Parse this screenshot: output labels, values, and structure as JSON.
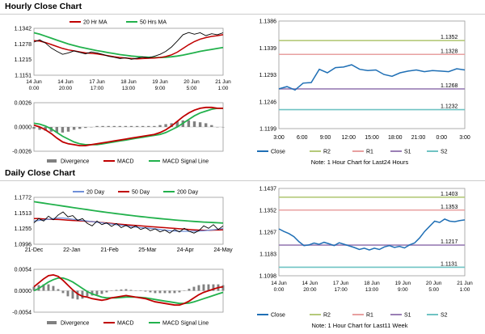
{
  "sections": {
    "hourly_title": "Hourly Close Chart",
    "daily_title": "Daily Close Chart"
  },
  "colors": {
    "close": "#1f6fb5",
    "ma_short": "#c00000",
    "ma_long": "#22b14c",
    "ma_200": "#22b14c",
    "ma_20": "#6f8fd8",
    "divergence": "#808080",
    "macd": "#c00000",
    "signal": "#22b14c",
    "price_line": "#000000",
    "r2": "#b5c97a",
    "r1": "#e8a0a0",
    "s1": "#9a7fb5",
    "s2": "#6fc3c3"
  },
  "notes": {
    "hourly": "Note: 1 Hour Chart for Last24 Hours",
    "daily": "Note: 1 Hour Chart for Last11 Week"
  },
  "chart_data": [
    {
      "id": "hourly_price",
      "type": "line",
      "legend": [
        "20 Hr MA",
        "50 Hrs MA"
      ],
      "y_ticks": [
        "1.1342",
        "1.1278",
        "1.1215",
        "1.1151"
      ],
      "x_ticks": [
        [
          "14 Jun",
          "0:00"
        ],
        [
          "14 Jun",
          "20:00"
        ],
        [
          "17 Jun",
          "17:00"
        ],
        [
          "18 Jun",
          "13:00"
        ],
        [
          "19 Jun",
          "9:00"
        ],
        [
          "20 Jun",
          "5:00"
        ],
        [
          "21 Jun",
          "1:00"
        ]
      ],
      "ylim": [
        1.1151,
        1.1342
      ],
      "close": [
        1.1286,
        1.1295,
        1.1282,
        1.1262,
        1.1248,
        1.1236,
        1.1242,
        1.125,
        1.1244,
        1.1238,
        1.1246,
        1.1242,
        1.1236,
        1.1228,
        1.1224,
        1.1219,
        1.1222,
        1.1216,
        1.122,
        1.1225,
        1.1222,
        1.1228,
        1.1236,
        1.1248,
        1.1266,
        1.129,
        1.1316,
        1.1325,
        1.1318,
        1.1324,
        1.1312,
        1.132,
        1.1316,
        1.1324
      ],
      "ma20": [
        1.1292,
        1.129,
        1.1284,
        1.1276,
        1.1268,
        1.126,
        1.1254,
        1.125,
        1.1246,
        1.1242,
        1.124,
        1.1238,
        1.1234,
        1.123,
        1.1226,
        1.1223,
        1.1221,
        1.1219,
        1.1218,
        1.1219,
        1.122,
        1.1221,
        1.1223,
        1.1227,
        1.1234,
        1.1245,
        1.126,
        1.1275,
        1.1288,
        1.1298,
        1.1304,
        1.1309,
        1.1312,
        1.1316
      ],
      "ma50": [
        1.1324,
        1.1318,
        1.131,
        1.1302,
        1.1294,
        1.1286,
        1.1278,
        1.1272,
        1.1266,
        1.1261,
        1.1256,
        1.1251,
        1.1247,
        1.1243,
        1.1239,
        1.1235,
        1.1232,
        1.1229,
        1.1227,
        1.1225,
        1.1224,
        1.1223,
        1.1223,
        1.1224,
        1.1226,
        1.1229,
        1.1233,
        1.1238,
        1.1243,
        1.1248,
        1.1252,
        1.1256,
        1.126,
        1.1264
      ]
    },
    {
      "id": "hourly_macd",
      "type": "line",
      "legend": [
        "Divergence",
        "MACD",
        "MACD Signal Line"
      ],
      "y_ticks": [
        "0.0026",
        "0.0000",
        "-0.0026"
      ],
      "ylim": [
        -0.0026,
        0.0026
      ],
      "macd": [
        0.0002,
        0.0,
        -0.0003,
        -0.0007,
        -0.0012,
        -0.0016,
        -0.0018,
        -0.0019,
        -0.002,
        -0.002,
        -0.0019,
        -0.0018,
        -0.0017,
        -0.0016,
        -0.0015,
        -0.0014,
        -0.0013,
        -0.0012,
        -0.0011,
        -0.001,
        -0.0009,
        -0.0008,
        -0.0006,
        -0.0003,
        0.0001,
        0.0006,
        0.0011,
        0.0015,
        0.0018,
        0.002,
        0.0021,
        0.0021,
        0.002,
        0.002
      ],
      "signal": [
        0.0004,
        0.0003,
        0.0001,
        -0.0002,
        -0.0006,
        -0.001,
        -0.0013,
        -0.0016,
        -0.0018,
        -0.0019,
        -0.0019,
        -0.0019,
        -0.0018,
        -0.0017,
        -0.0016,
        -0.0015,
        -0.0014,
        -0.0013,
        -0.0012,
        -0.0011,
        -0.001,
        -0.0009,
        -0.0008,
        -0.0006,
        -0.0003,
        0.0,
        0.0004,
        0.0008,
        0.0012,
        0.0015,
        0.0017,
        0.0019,
        0.002,
        0.002
      ]
    },
    {
      "id": "hourly_pivot",
      "type": "line",
      "legend": [
        "Close",
        "R2",
        "R1",
        "S1",
        "S2"
      ],
      "y_ticks": [
        "1.1386",
        "1.1339",
        "1.1293",
        "1.1246",
        "1.1199"
      ],
      "x_ticks": [
        "3:00",
        "6:00",
        "9:00",
        "12:00",
        "15:00",
        "18:00",
        "21:00",
        "0:00",
        "3:00"
      ],
      "ylim": [
        1.1199,
        1.1386
      ],
      "levels": {
        "R2": "1.1352",
        "R1": "1.1328",
        "S1": "1.1268",
        "S2": "1.1232"
      },
      "close": [
        1.1268,
        1.1272,
        1.1266,
        1.1278,
        1.1279,
        1.1302,
        1.1296,
        1.1305,
        1.1306,
        1.131,
        1.1302,
        1.13,
        1.1301,
        1.1293,
        1.129,
        1.1296,
        1.1299,
        1.1301,
        1.1298,
        1.13,
        1.1299,
        1.1298,
        1.1303,
        1.1301
      ]
    },
    {
      "id": "daily_price",
      "type": "line",
      "legend": [
        "20 Day",
        "50 Day",
        "200 Day"
      ],
      "y_ticks": [
        "1.1772",
        "1.1513",
        "1.1255",
        "1.0996"
      ],
      "x_ticks": [
        "21-Dec",
        "22-Jan",
        "21-Feb",
        "25-Mar",
        "24-Apr",
        "24-May"
      ],
      "ylim": [
        1.0996,
        1.1772
      ],
      "close": [
        1.135,
        1.142,
        1.138,
        1.146,
        1.14,
        1.148,
        1.153,
        1.145,
        1.147,
        1.139,
        1.142,
        1.134,
        1.13,
        1.138,
        1.132,
        1.135,
        1.129,
        1.134,
        1.127,
        1.131,
        1.126,
        1.13,
        1.124,
        1.127,
        1.122,
        1.125,
        1.12,
        1.123,
        1.118,
        1.124,
        1.12,
        1.126,
        1.121,
        1.118,
        1.122,
        1.13,
        1.126,
        1.132,
        1.124,
        1.13
      ],
      "ma20": [
        1.138,
        1.139,
        1.14,
        1.141,
        1.142,
        1.143,
        1.143,
        1.142,
        1.141,
        1.14,
        1.139,
        1.138,
        1.137,
        1.136,
        1.135,
        1.134,
        1.133,
        1.132,
        1.131,
        1.13,
        1.129,
        1.128,
        1.127,
        1.1265,
        1.126,
        1.125,
        1.124,
        1.123,
        1.122,
        1.1215,
        1.121,
        1.121,
        1.121,
        1.1212,
        1.1215,
        1.122,
        1.1228,
        1.1235,
        1.1245,
        1.1255
      ],
      "ma50": [
        1.142,
        1.142,
        1.1415,
        1.141,
        1.1408,
        1.1405,
        1.14,
        1.1395,
        1.139,
        1.1385,
        1.138,
        1.1375,
        1.137,
        1.1362,
        1.1355,
        1.1348,
        1.134,
        1.1332,
        1.1325,
        1.1318,
        1.1312,
        1.1306,
        1.13,
        1.1294,
        1.1288,
        1.1282,
        1.1276,
        1.127,
        1.1264,
        1.1258,
        1.1252,
        1.1246,
        1.124,
        1.1234,
        1.123,
        1.1228,
        1.1228,
        1.123,
        1.1232,
        1.1235
      ],
      "ma200": [
        1.17,
        1.1688,
        1.1676,
        1.1664,
        1.1652,
        1.164,
        1.1628,
        1.1616,
        1.1604,
        1.1592,
        1.158,
        1.1568,
        1.1556,
        1.1545,
        1.1534,
        1.1523,
        1.1512,
        1.1502,
        1.1492,
        1.1482,
        1.1472,
        1.1463,
        1.1454,
        1.1445,
        1.1436,
        1.1428,
        1.142,
        1.1412,
        1.1405,
        1.1398,
        1.1391,
        1.1385,
        1.1379,
        1.1373,
        1.1368,
        1.1363,
        1.1358,
        1.1354,
        1.135,
        1.1346
      ]
    },
    {
      "id": "daily_macd",
      "type": "line",
      "legend": [
        "Divergence",
        "MACD",
        "MACD Signal Line"
      ],
      "y_ticks": [
        "0.0054",
        "0.0000",
        "-0.0054"
      ],
      "ylim": [
        -0.0054,
        0.0054
      ],
      "macd": [
        0.001,
        0.002,
        0.003,
        0.0038,
        0.004,
        0.0036,
        0.0026,
        0.0014,
        0.0002,
        -0.0008,
        -0.0014,
        -0.0016,
        -0.002,
        -0.0022,
        -0.0024,
        -0.0022,
        -0.0018,
        -0.0016,
        -0.0014,
        -0.0012,
        -0.0014,
        -0.0016,
        -0.0018,
        -0.002,
        -0.0024,
        -0.0028,
        -0.003,
        -0.0032,
        -0.0034,
        -0.0036,
        -0.0036,
        -0.0032,
        -0.0026,
        -0.0018,
        -0.001,
        -0.0004,
        0.0,
        0.0004,
        0.0008,
        0.001
      ],
      "signal": [
        0.0,
        0.0006,
        0.0014,
        0.0022,
        0.0028,
        0.0032,
        0.0032,
        0.0028,
        0.0022,
        0.0014,
        0.0006,
        -0.0002,
        -0.0008,
        -0.0012,
        -0.0016,
        -0.0018,
        -0.0018,
        -0.0018,
        -0.0017,
        -0.0016,
        -0.0016,
        -0.0016,
        -0.0017,
        -0.0018,
        -0.002,
        -0.0022,
        -0.0024,
        -0.0026,
        -0.0028,
        -0.003,
        -0.0032,
        -0.0032,
        -0.0031,
        -0.0028,
        -0.0024,
        -0.002,
        -0.0016,
        -0.0012,
        -0.0008,
        -0.0004
      ]
    },
    {
      "id": "daily_pivot",
      "type": "line",
      "legend": [
        "Close",
        "R2",
        "R1",
        "S1",
        "S2"
      ],
      "y_ticks": [
        "1.1437",
        "1.1352",
        "1.1267",
        "1.1183",
        "1.1098"
      ],
      "x_ticks": [
        [
          "14 Jun",
          "0:00"
        ],
        [
          "14 Jun",
          "20:00"
        ],
        [
          "17 Jun",
          "17:00"
        ],
        [
          "18 Jun",
          "13:00"
        ],
        [
          "19 Jun",
          "9:00"
        ],
        [
          "20 Jun",
          "5:00"
        ],
        [
          "21 Jun",
          "1:00"
        ]
      ],
      "ylim": [
        1.1098,
        1.1437
      ],
      "levels": {
        "R2": "1.1403",
        "R1": "1.1353",
        "S1": "1.1217",
        "S2": "1.1131"
      },
      "close": [
        1.128,
        1.127,
        1.1262,
        1.125,
        1.123,
        1.1215,
        1.1218,
        1.1225,
        1.122,
        1.1228,
        1.1222,
        1.1215,
        1.1226,
        1.122,
        1.1214,
        1.1208,
        1.12,
        1.1205,
        1.1198,
        1.1205,
        1.12,
        1.121,
        1.1215,
        1.1208,
        1.1212,
        1.1206,
        1.1218,
        1.1225,
        1.1245,
        1.127,
        1.129,
        1.131,
        1.1305,
        1.1318,
        1.131,
        1.1308,
        1.1312,
        1.1315
      ]
    }
  ]
}
